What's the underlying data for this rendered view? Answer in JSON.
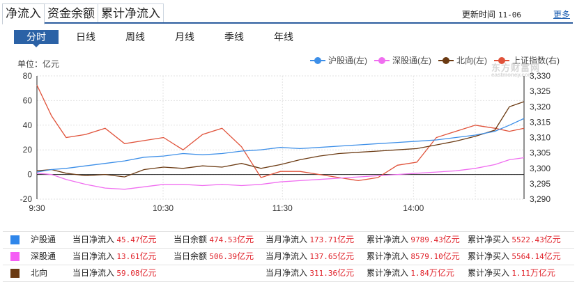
{
  "tabs": [
    {
      "label": "净流入",
      "active": true
    },
    {
      "label": "资金余额",
      "active": false
    },
    {
      "label": "累计净流入",
      "active": false
    }
  ],
  "header": {
    "update_label": "更新时间",
    "update_date": "11-06",
    "more_label": "更多"
  },
  "periods": [
    {
      "label": "分时",
      "active": true
    },
    {
      "label": "日线",
      "active": false
    },
    {
      "label": "周线",
      "active": false
    },
    {
      "label": "月线",
      "active": false
    },
    {
      "label": "季线",
      "active": false
    },
    {
      "label": "年线",
      "active": false
    }
  ],
  "unit_label": "单位：亿元",
  "watermark": {
    "text": "东方财富网",
    "sub": "eastmoney.com"
  },
  "colors": {
    "hgt": "#3d8fe8",
    "sgt": "#f06ef0",
    "north": "#6b3a12",
    "sh_index": "#e0523a"
  },
  "chart_data": {
    "type": "line",
    "title": "",
    "xlabel": "",
    "ylabel": "单位：亿元",
    "x_ticks": [
      "9:30",
      "10:30",
      "11:30",
      "14:00"
    ],
    "y_left": {
      "ticks": [
        80,
        60,
        40,
        20,
        0,
        -20
      ],
      "range": [
        -20,
        80
      ]
    },
    "y_right": {
      "ticks": [
        "3,330",
        "3,325",
        "3,320",
        "3,315",
        "3,310",
        "3,305",
        "3,300",
        "3,295",
        "3,290"
      ],
      "range": [
        3290,
        3330
      ]
    },
    "grid": true,
    "legend_position": "top-right",
    "legend": [
      "沪股通(左)",
      "深股通(左)",
      "北向(左)",
      "上证指数(右)"
    ],
    "x": [
      0,
      0.03,
      0.06,
      0.1,
      0.14,
      0.18,
      0.22,
      0.26,
      0.3,
      0.34,
      0.38,
      0.42,
      0.46,
      0.5,
      0.54,
      0.58,
      0.62,
      0.66,
      0.7,
      0.74,
      0.78,
      0.82,
      0.86,
      0.9,
      0.94,
      0.97,
      1.0
    ],
    "series": [
      {
        "name": "沪股通",
        "axis": "left",
        "values": [
          2,
          4,
          5,
          7,
          9,
          11,
          14,
          15,
          17,
          16,
          17,
          19,
          20,
          22,
          21,
          22,
          23,
          24,
          25,
          26,
          27,
          28,
          30,
          32,
          35,
          40,
          45.47
        ]
      },
      {
        "name": "深股通",
        "axis": "left",
        "values": [
          1,
          0,
          -4,
          -8,
          -11,
          -12,
          -10,
          -8,
          -8,
          -9,
          -8,
          -9,
          -8,
          -6,
          -5,
          -4,
          -3,
          -2,
          -1,
          0,
          1,
          2,
          3,
          5,
          8,
          12,
          13.61
        ]
      },
      {
        "name": "北向",
        "axis": "left",
        "values": [
          3,
          4,
          1,
          -1,
          0,
          -2,
          4,
          6,
          5,
          7,
          6,
          9,
          5,
          8,
          12,
          15,
          17,
          18,
          19,
          20,
          21,
          24,
          27,
          31,
          36,
          55,
          59.08
        ]
      },
      {
        "name": "上证指数",
        "axis": "right",
        "values": [
          3327,
          3317,
          3310,
          3311,
          3313,
          3308,
          3309,
          3310,
          3306,
          3311,
          3313,
          3307,
          3297,
          3299,
          3299,
          3298,
          3297,
          3296,
          3297,
          3301,
          3302,
          3310,
          3312,
          3314,
          3313,
          3312,
          3313
        ]
      }
    ]
  },
  "summary": {
    "rows": [
      {
        "name": "沪股通",
        "color": "#2f86ea",
        "day_in_label": "当日净流入",
        "day_in": "45.47",
        "balance_label": "当日余额",
        "balance": "474.53",
        "month_in_label": "当月净流入",
        "month_in": "173.71",
        "cum_in_label": "累计净流入",
        "cum_in": "9789.43",
        "cum_buy_label": "累计净买入",
        "cum_buy": "5522.43",
        "unit": "亿元",
        "cum_in_unit": "亿元",
        "cum_buy_unit": "亿元"
      },
      {
        "name": "深股通",
        "color": "#f55ef5",
        "day_in_label": "当日净流入",
        "day_in": "13.61",
        "balance_label": "当日余额",
        "balance": "506.39",
        "month_in_label": "当月净流入",
        "month_in": "137.65",
        "cum_in_label": "累计净流入",
        "cum_in": "8579.10",
        "cum_buy_label": "累计净买入",
        "cum_buy": "5564.14",
        "unit": "亿元",
        "cum_in_unit": "亿元",
        "cum_buy_unit": "亿元"
      },
      {
        "name": "北向",
        "color": "#6b3a12",
        "day_in_label": "当日净流入",
        "day_in": "59.08",
        "balance_label": "",
        "balance": "",
        "month_in_label": "当月净流入",
        "month_in": "311.36",
        "cum_in_label": "累计净流入",
        "cum_in": "1.84",
        "cum_buy_label": "累计净买入",
        "cum_buy": "1.11",
        "unit": "亿元",
        "cum_in_unit": "万亿元",
        "cum_buy_unit": "万亿元"
      }
    ]
  }
}
